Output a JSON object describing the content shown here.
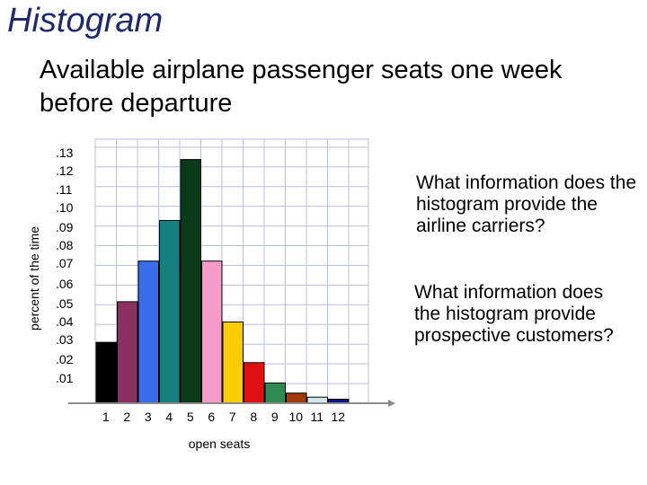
{
  "slide": {
    "title": "Histogram",
    "subtitle": "Available airplane passenger seats one week before departure",
    "questions": [
      "What information does the histogram provide the airline carriers?",
      "What information does the histogram provide prospective customers?"
    ]
  },
  "chart_data": {
    "type": "bar",
    "xlabel": "open seats",
    "ylabel": "percent of the time",
    "categories": [
      "1",
      "2",
      "3",
      "4",
      "5",
      "6",
      "7",
      "8",
      "9",
      "10",
      "11",
      "12"
    ],
    "values": [
      0.03,
      0.05,
      0.07,
      0.09,
      0.12,
      0.07,
      0.04,
      0.02,
      0.01,
      0.005,
      0.003,
      0.002
    ],
    "colors": [
      "#000000",
      "#8b3060",
      "#3a6ee8",
      "#158080",
      "#0b3a18",
      "#f59ac9",
      "#ffcc00",
      "#e01010",
      "#2e8a50",
      "#a03a0a",
      "#cfe8e8",
      "#0a1a8a"
    ],
    "yticks": [
      ".13",
      ".12",
      ".11",
      ".10",
      ".09",
      ".08",
      ".07",
      ".06",
      ".05",
      ".04",
      ".03",
      ".02",
      ".01"
    ],
    "ylim": [
      0,
      0.13
    ],
    "grid": true
  }
}
